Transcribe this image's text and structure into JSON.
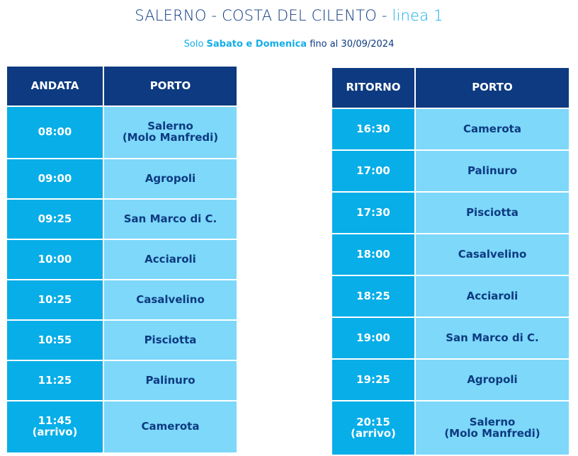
{
  "title": {
    "main": "SALERNO - COSTA DEL CILENTO - ",
    "accent": "linea 1"
  },
  "subtitle": {
    "pre": "Solo ",
    "bold": "Sabato e Domenica",
    "post": " fino al 30/09/2024"
  },
  "andata": {
    "headers": [
      "ANDATA",
      "PORTO"
    ],
    "rows": [
      {
        "time": "08:00",
        "port": "Salerno",
        "port2": "(Molo Manfredi)"
      },
      {
        "time": "09:00",
        "port": "Agropoli"
      },
      {
        "time": "09:25",
        "port": "San Marco di C."
      },
      {
        "time": "10:00",
        "port": "Acciaroli"
      },
      {
        "time": "10:25",
        "port": "Casalvelino"
      },
      {
        "time": "10:55",
        "port": "Pisciotta"
      },
      {
        "time": "11:25",
        "port": "Palinuro"
      },
      {
        "time": "11:45",
        "time2": "(arrivo)",
        "port": "Camerota"
      }
    ]
  },
  "ritorno": {
    "headers": [
      "RITORNO",
      "PORTO"
    ],
    "rows": [
      {
        "time": "16:30",
        "port": "Camerota"
      },
      {
        "time": "17:00",
        "port": "Palinuro"
      },
      {
        "time": "17:30",
        "port": "Pisciotta"
      },
      {
        "time": "18:00",
        "port": "Casalvelino"
      },
      {
        "time": "18:25",
        "port": "Acciaroli"
      },
      {
        "time": "19:00",
        "port": "San Marco di C."
      },
      {
        "time": "19:25",
        "port": "Agropoli"
      },
      {
        "time": "20:15",
        "time2": "(arrivo)",
        "port": "Salerno",
        "port2": "(Molo Manfredi)"
      }
    ]
  },
  "colors": {
    "header": "#0d3a80",
    "time_cell": "#07aee8",
    "port_cell": "#7dd8fa",
    "accent": "#14aeea"
  }
}
